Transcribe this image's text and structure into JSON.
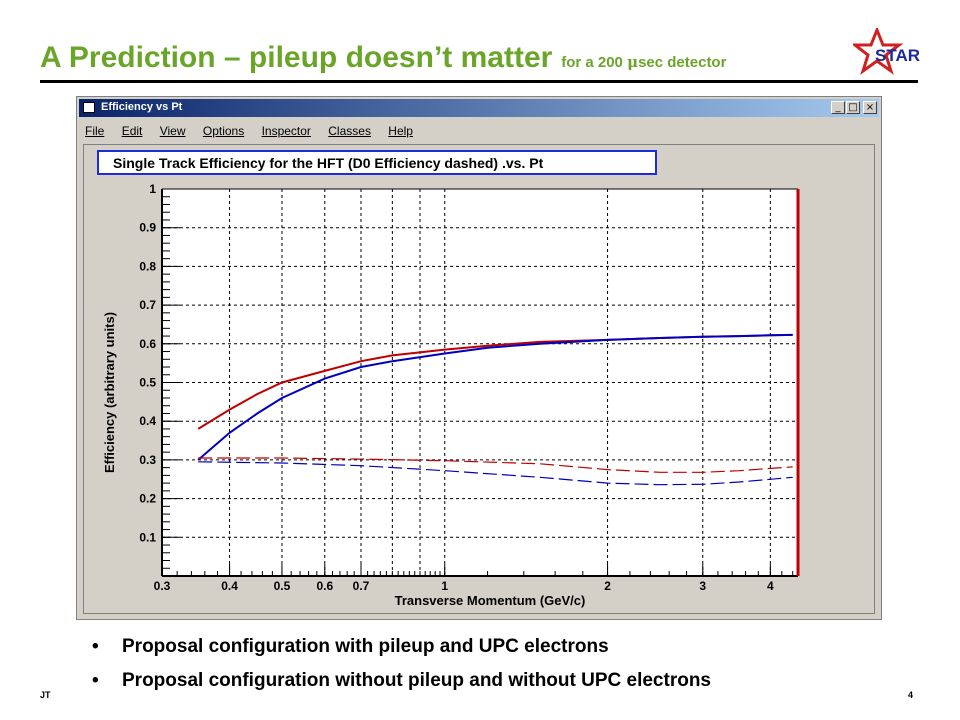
{
  "slide": {
    "title_main": "A Prediction – pileup doesn’t matter",
    "title_sub_pre": "for a 200 ",
    "title_sub_mu": "μ",
    "title_sub_post": "sec detector",
    "logo_text": "STAR",
    "bullets": [
      "Proposal configuration with pileup and UPC electrons",
      "Proposal configuration without pileup and without UPC electrons"
    ],
    "footer_left": "JT",
    "footer_right": "4"
  },
  "window": {
    "title": "Efficiency vs Pt",
    "buttons": {
      "minimize": "_",
      "maximize": "□",
      "close": "×"
    },
    "menu": [
      "File",
      "Edit",
      "View",
      "Options",
      "Inspector",
      "Classes",
      "Help"
    ]
  },
  "chart_data": {
    "type": "line",
    "title": "Single Track Efficiency for the HFT (D0 Efficiency dashed) .vs. Pt",
    "xlabel": "Transverse Momentum (GeV/c)",
    "ylabel": "Efficiency (arbitrary units)",
    "x_scale": "log",
    "xlim": [
      0.3,
      4.5
    ],
    "ylim": [
      0,
      1
    ],
    "x_ticks": [
      "0.3",
      "0.4",
      "0.5",
      "0.6",
      "0.7",
      "1",
      "2",
      "3",
      "4"
    ],
    "y_ticks": [
      "0.1",
      "0.2",
      "0.3",
      "0.4",
      "0.5",
      "0.6",
      "0.7",
      "0.8",
      "0.9",
      "1"
    ],
    "grid": true,
    "colors": {
      "red": "#c00000",
      "blue": "#0000c0",
      "frame_red": "#c00000"
    },
    "series": [
      {
        "color": "#c00000",
        "style": "solid",
        "x": [
          0.35,
          0.4,
          0.45,
          0.5,
          0.6,
          0.7,
          0.8,
          1.0,
          1.2,
          1.5,
          2.0,
          2.5,
          3.0,
          3.5,
          4.0,
          4.4
        ],
        "y": [
          0.38,
          0.43,
          0.47,
          0.5,
          0.53,
          0.555,
          0.57,
          0.585,
          0.595,
          0.605,
          0.61,
          0.615,
          0.618,
          0.62,
          0.622,
          0.623
        ]
      },
      {
        "color": "#0000c0",
        "style": "solid",
        "x": [
          0.35,
          0.4,
          0.45,
          0.5,
          0.6,
          0.7,
          0.8,
          1.0,
          1.2,
          1.5,
          2.0,
          2.5,
          3.0,
          3.5,
          4.0,
          4.4
        ],
        "y": [
          0.3,
          0.37,
          0.42,
          0.46,
          0.51,
          0.54,
          0.555,
          0.575,
          0.59,
          0.6,
          0.61,
          0.615,
          0.618,
          0.62,
          0.622,
          0.623
        ]
      },
      {
        "color": "#c00000",
        "style": "dashed",
        "x": [
          0.35,
          0.5,
          0.7,
          1.0,
          1.5,
          2.0,
          2.5,
          3.0,
          3.5,
          4.0,
          4.4
        ],
        "y": [
          0.305,
          0.305,
          0.302,
          0.298,
          0.29,
          0.275,
          0.268,
          0.268,
          0.272,
          0.278,
          0.282
        ]
      },
      {
        "color": "#0000c0",
        "style": "dashed",
        "x": [
          0.35,
          0.5,
          0.7,
          1.0,
          1.5,
          2.0,
          2.5,
          3.0,
          3.5,
          4.0,
          4.4
        ],
        "y": [
          0.295,
          0.292,
          0.285,
          0.272,
          0.255,
          0.24,
          0.236,
          0.237,
          0.243,
          0.25,
          0.255
        ]
      }
    ]
  }
}
